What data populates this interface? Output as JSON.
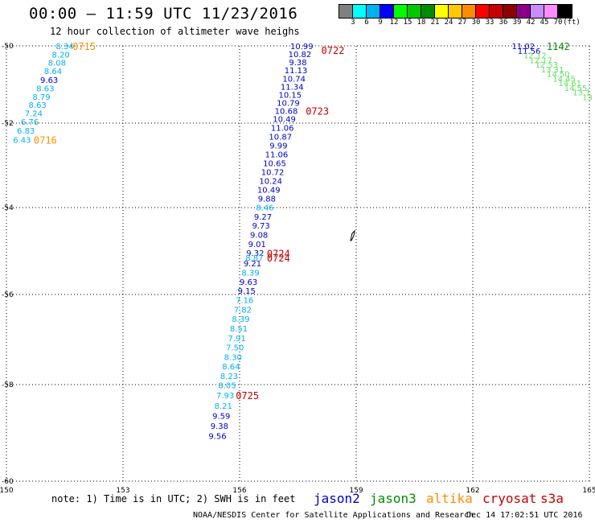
{
  "header": {
    "title": "00:00 — 11:59 UTC 11/23/2016",
    "subtitle": "12 hour collection of altimeter wave heighs"
  },
  "color_scale": {
    "labels": [
      "3",
      "6",
      "9",
      "12",
      "15",
      "18",
      "21",
      "24",
      "27",
      "30",
      "33",
      "36",
      "39",
      "42",
      "45",
      "70",
      "(ft)"
    ],
    "colors": [
      "#808080",
      "#00ffff",
      "#00b0f0",
      "#0000ff",
      "#00ff00",
      "#00c800",
      "#008c00",
      "#ffff00",
      "#ffc800",
      "#ff8c00",
      "#ff0000",
      "#c80000",
      "#8c0000",
      "#8c008c",
      "#c88cff",
      "#ff8cff",
      "#000000"
    ]
  },
  "axes": {
    "x_ticks": [
      "150",
      "153",
      "156",
      "159",
      "162",
      "165"
    ],
    "y_ticks": [
      "-50",
      "-52",
      "-54",
      "-56",
      "-58",
      "-60"
    ],
    "grid": true
  },
  "satellite_colors": {
    "jason2": "#0000c8",
    "jason3": "#008c00",
    "altika": "#ff8c00",
    "cryosat": "#c80000",
    "s3a": "#c80000"
  },
  "tracks": [
    {
      "id": "track-west",
      "readings": [
        {
          "lon": 151.5,
          "lat": -50.0,
          "v": "8.34",
          "c": "#00b0f0"
        },
        {
          "lon": 151.4,
          "lat": -50.22,
          "v": "8.20",
          "c": "#00b0f0"
        },
        {
          "lon": 151.3,
          "lat": -50.43,
          "v": "8.08",
          "c": "#00b0f0"
        },
        {
          "lon": 151.2,
          "lat": -50.65,
          "v": "8.64",
          "c": "#00b0f0"
        },
        {
          "lon": 151.1,
          "lat": -50.87,
          "v": "9.63",
          "c": "#0000c8"
        },
        {
          "lon": 151.0,
          "lat": -51.09,
          "v": "8.63",
          "c": "#00b0f0"
        },
        {
          "lon": 150.9,
          "lat": -51.31,
          "v": "8.79",
          "c": "#00b0f0"
        },
        {
          "lon": 150.8,
          "lat": -51.52,
          "v": "8.63",
          "c": "#00b0f0"
        },
        {
          "lon": 150.7,
          "lat": -51.74,
          "v": "7.24",
          "c": "#00b0f0"
        },
        {
          "lon": 150.6,
          "lat": -51.96,
          "v": "6.76",
          "c": "#00b0f0"
        },
        {
          "lon": 150.5,
          "lat": -52.17,
          "v": "6.83",
          "c": "#00b0f0"
        },
        {
          "lon": 150.4,
          "lat": -52.39,
          "v": "6.43",
          "c": "#00b0f0"
        }
      ]
    },
    {
      "id": "track-central",
      "readings": [
        {
          "lon": 157.6,
          "lat": -50.0,
          "v": "10.99",
          "c": "#0000c8"
        },
        {
          "lon": 157.55,
          "lat": -50.21,
          "v": "10.82",
          "c": "#0000c8"
        },
        {
          "lon": 157.5,
          "lat": -50.42,
          "v": "9.38",
          "c": "#0000c8"
        },
        {
          "lon": 157.45,
          "lat": -50.63,
          "v": "11.13",
          "c": "#0000c8"
        },
        {
          "lon": 157.4,
          "lat": -50.84,
          "v": "10.74",
          "c": "#0000c8"
        },
        {
          "lon": 157.35,
          "lat": -51.05,
          "v": "11.34",
          "c": "#0000c8"
        },
        {
          "lon": 157.3,
          "lat": -51.26,
          "v": "10.15",
          "c": "#0000c8"
        },
        {
          "lon": 157.25,
          "lat": -51.47,
          "v": "10.79",
          "c": "#0000c8"
        },
        {
          "lon": 157.2,
          "lat": -51.68,
          "v": "10.68",
          "c": "#0000c8"
        },
        {
          "lon": 157.15,
          "lat": -51.89,
          "v": "10.49",
          "c": "#0000c8"
        },
        {
          "lon": 157.1,
          "lat": -52.1,
          "v": "11.06",
          "c": "#0000c8"
        },
        {
          "lon": 157.05,
          "lat": -52.31,
          "v": "10.87",
          "c": "#0000c8"
        },
        {
          "lon": 157.0,
          "lat": -52.52,
          "v": "9.99",
          "c": "#0000c8"
        },
        {
          "lon": 156.95,
          "lat": -52.73,
          "v": "11.06",
          "c": "#0000c8"
        },
        {
          "lon": 156.9,
          "lat": -52.94,
          "v": "10.65",
          "c": "#0000c8"
        },
        {
          "lon": 156.85,
          "lat": -53.15,
          "v": "10.72",
          "c": "#0000c8"
        },
        {
          "lon": 156.8,
          "lat": -53.36,
          "v": "10.24",
          "c": "#0000c8"
        },
        {
          "lon": 156.75,
          "lat": -53.57,
          "v": "10.49",
          "c": "#0000c8"
        },
        {
          "lon": 156.7,
          "lat": -53.78,
          "v": "9.88",
          "c": "#0000c8"
        },
        {
          "lon": 156.65,
          "lat": -53.99,
          "v": "8.46",
          "c": "#00b0f0"
        },
        {
          "lon": 156.6,
          "lat": -54.2,
          "v": "9.27",
          "c": "#0000c8"
        },
        {
          "lon": 156.55,
          "lat": -54.41,
          "v": "9.73",
          "c": "#0000c8"
        },
        {
          "lon": 156.5,
          "lat": -54.62,
          "v": "9.08",
          "c": "#0000c8"
        },
        {
          "lon": 156.45,
          "lat": -54.83,
          "v": "9.01",
          "c": "#0000c8"
        },
        {
          "lon": 156.4,
          "lat": -55.04,
          "v": "9.32",
          "c": "#0000c8"
        },
        {
          "lon": 156.38,
          "lat": -55.15,
          "v": "8.87",
          "c": "#00b0f0"
        },
        {
          "lon": 156.33,
          "lat": -55.28,
          "v": "9.21",
          "c": "#0000c8"
        },
        {
          "lon": 156.28,
          "lat": -55.49,
          "v": "8.39",
          "c": "#00b0f0"
        },
        {
          "lon": 156.23,
          "lat": -55.7,
          "v": "9.63",
          "c": "#0000c8"
        },
        {
          "lon": 156.18,
          "lat": -55.91,
          "v": "9.15",
          "c": "#0000c8"
        },
        {
          "lon": 156.13,
          "lat": -56.12,
          "v": "7.16",
          "c": "#00b0f0"
        },
        {
          "lon": 156.08,
          "lat": -56.33,
          "v": "7.82",
          "c": "#00b0f0"
        },
        {
          "lon": 156.03,
          "lat": -56.54,
          "v": "8.39",
          "c": "#00b0f0"
        },
        {
          "lon": 155.98,
          "lat": -56.75,
          "v": "8.51",
          "c": "#00b0f0"
        },
        {
          "lon": 155.93,
          "lat": -56.96,
          "v": "7.91",
          "c": "#00b0f0"
        },
        {
          "lon": 155.88,
          "lat": -57.17,
          "v": "7.50",
          "c": "#00b0f0"
        },
        {
          "lon": 155.83,
          "lat": -57.38,
          "v": "8.30",
          "c": "#00b0f0"
        },
        {
          "lon": 155.78,
          "lat": -57.59,
          "v": "8.64",
          "c": "#00b0f0"
        },
        {
          "lon": 155.73,
          "lat": -57.8,
          "v": "8.23",
          "c": "#00b0f0"
        },
        {
          "lon": 155.68,
          "lat": -58.01,
          "v": "8.05",
          "c": "#00b0f0"
        },
        {
          "lon": 155.63,
          "lat": -58.22,
          "v": "7.93",
          "c": "#00b0f0"
        },
        {
          "lon": 155.58,
          "lat": -58.43,
          "v": "8.21",
          "c": "#00b0f0"
        },
        {
          "lon": 155.53,
          "lat": -58.64,
          "v": "9.59",
          "c": "#0000c8"
        },
        {
          "lon": 155.48,
          "lat": -58.85,
          "v": "9.38",
          "c": "#0000c8"
        },
        {
          "lon": 155.43,
          "lat": -59.06,
          "v": "9.56",
          "c": "#0000c8"
        }
      ]
    },
    {
      "id": "track-east",
      "readings": [
        {
          "lon": 163.3,
          "lat": -50.0,
          "v": "11.02",
          "c": "#0000c8"
        },
        {
          "lon": 163.45,
          "lat": -50.12,
          "v": "11.56",
          "c": "#0000c8"
        },
        {
          "lon": 163.6,
          "lat": -50.24,
          "v": "12.12",
          "c": "#66e066"
        },
        {
          "lon": 163.75,
          "lat": -50.36,
          "v": "12.17",
          "c": "#66e066"
        },
        {
          "lon": 163.9,
          "lat": -50.48,
          "v": "12.53",
          "c": "#66e066"
        },
        {
          "lon": 164.05,
          "lat": -50.6,
          "v": "13.31",
          "c": "#66e066"
        },
        {
          "lon": 164.2,
          "lat": -50.72,
          "v": "14.50",
          "c": "#66e066"
        },
        {
          "lon": 164.35,
          "lat": -50.84,
          "v": "14.45",
          "c": "#66e066"
        },
        {
          "lon": 164.5,
          "lat": -50.96,
          "v": "14.61",
          "c": "#66e066"
        },
        {
          "lon": 164.65,
          "lat": -51.08,
          "v": "14.55",
          "c": "#66e066"
        },
        {
          "lon": 164.8,
          "lat": -51.2,
          "v": "13.1",
          "c": "#66e066"
        },
        {
          "lon": 164.95,
          "lat": -51.32,
          "v": "13",
          "c": "#66e066"
        }
      ]
    }
  ],
  "time_labels": [
    {
      "lon": 152.0,
      "lat": -50.0,
      "text": "0715",
      "c": "#ff8c00"
    },
    {
      "lon": 151.0,
      "lat": -52.39,
      "text": "0716",
      "c": "#ff8c00"
    },
    {
      "lon": 158.4,
      "lat": -50.1,
      "text": "0722",
      "c": "#c80000"
    },
    {
      "lon": 158.0,
      "lat": -51.68,
      "text": "0723",
      "c": "#c80000"
    },
    {
      "lon": 157.0,
      "lat": -55.05,
      "text": "0724",
      "c": "#c80000"
    },
    {
      "lon": 157.0,
      "lat": -55.15,
      "text": "0724",
      "c": "#c80000"
    },
    {
      "lon": 156.2,
      "lat": -58.22,
      "text": "0725",
      "c": "#c80000"
    },
    {
      "lon": 164.2,
      "lat": -50.0,
      "text": "1142",
      "c": "#008c00"
    }
  ],
  "satellites": [
    {
      "label": "jason2",
      "color": "#0000c8"
    },
    {
      "label": "jason3",
      "color": "#008c00"
    },
    {
      "label": "altika",
      "color": "#ff8c00"
    },
    {
      "label": "cryosat",
      "color": "#c80000"
    },
    {
      "label": "s3a",
      "color": "#c80000"
    }
  ],
  "footer": {
    "note": "note: 1) Time is in UTC; 2) SWH is in feet",
    "credit": "NOAA/NESDIS Center for Satellite Applications and Research",
    "timestamp": "Dec 14 17:02:51 UTC 2016"
  }
}
